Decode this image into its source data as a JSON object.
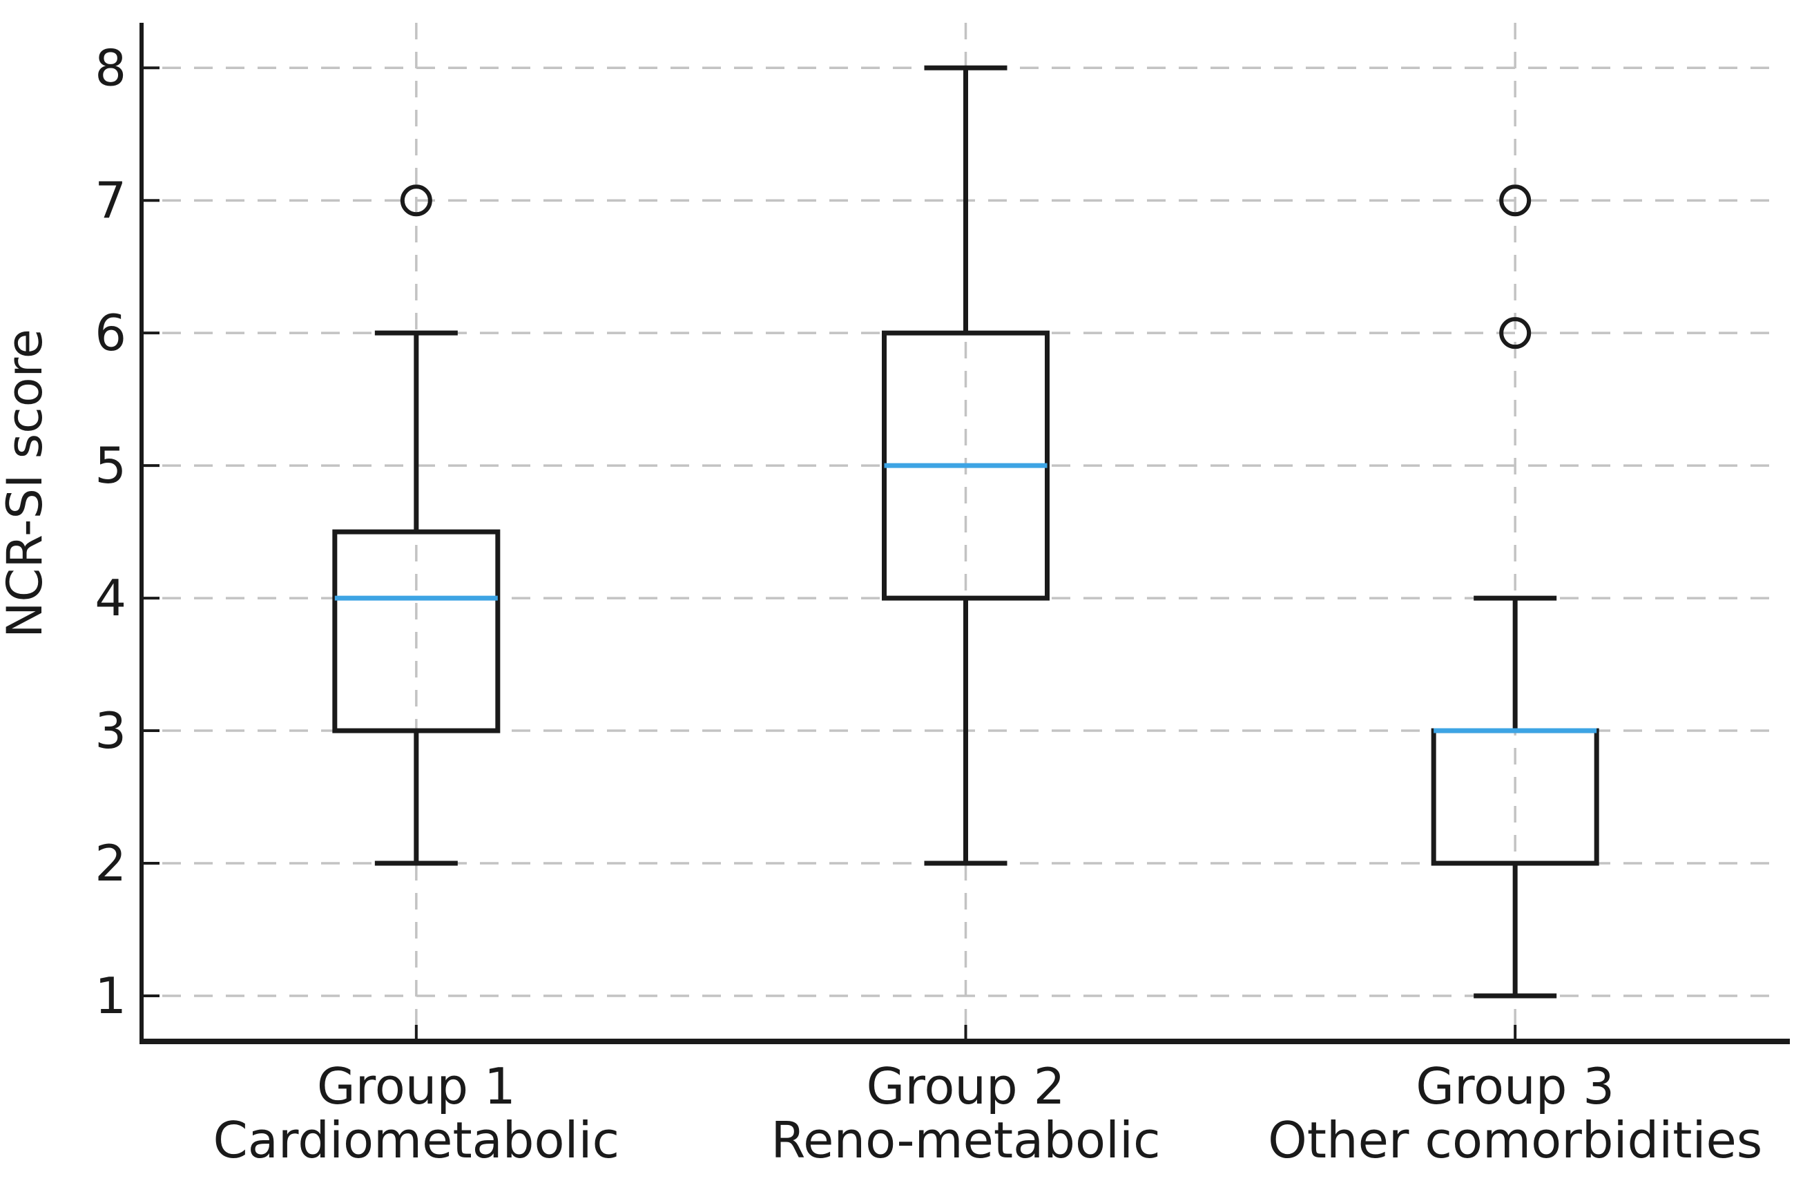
{
  "chart_data": {
    "type": "boxplot",
    "title": "",
    "xlabel": "",
    "ylabel": "NCR-SI score",
    "ylim": [
      0.656,
      8.34
    ],
    "yticks": [
      1,
      2,
      3,
      4,
      5,
      6,
      7,
      8
    ],
    "grid": "on",
    "grid_style": "dashed",
    "legend": "none",
    "categories": [
      {
        "line1": "Group 1",
        "line2": "Cardiometabolic"
      },
      {
        "line1": "Group 2",
        "line2": "Reno-metabolic"
      },
      {
        "line1": "Group 3",
        "line2": "Other comorbidities"
      }
    ],
    "boxes": [
      {
        "whisker_low": 2,
        "q1": 3,
        "median": 4,
        "q3": 4.5,
        "whisker_high": 6,
        "outliers": [
          7
        ]
      },
      {
        "whisker_low": 2,
        "q1": 4,
        "median": 5,
        "q3": 6,
        "whisker_high": 8,
        "outliers": []
      },
      {
        "whisker_low": 1,
        "q1": 2,
        "median": 3,
        "q3": 3,
        "whisker_high": 4,
        "outliers": [
          6,
          7
        ]
      }
    ],
    "colors": {
      "box_line": "#1a1a1a",
      "median_line": "#3da4e4",
      "grid_line": "#c3c3c3",
      "axis_line": "#1a1a1a",
      "text": "#1a1a1a",
      "background": "#ffffff"
    }
  }
}
